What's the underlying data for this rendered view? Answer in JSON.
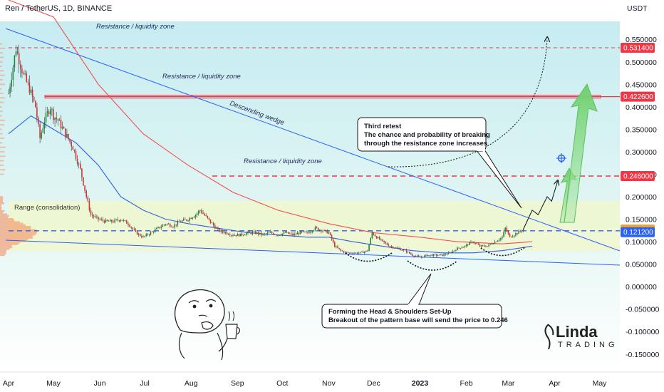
{
  "header": {
    "symbol_title": "Ren / TetherUS, 1D, BINANCE",
    "currency": "USDT"
  },
  "chart_data": {
    "type": "candlestick",
    "y_axis": {
      "ylim": [
        -0.19,
        0.59
      ],
      "ticks": [
        "0.550000",
        "0.500000",
        "0.450000",
        "0.400000",
        "0.350000",
        "0.300000",
        "0.250000",
        "0.200000",
        "0.150000",
        "0.100000",
        "0.050000",
        "0.000000",
        "-0.050000",
        "-0.100000",
        "-0.150000"
      ],
      "tick_values": [
        0.55,
        0.5,
        0.45,
        0.4,
        0.35,
        0.3,
        0.25,
        0.2,
        0.15,
        0.1,
        0.05,
        0,
        -0.05,
        -0.1,
        -0.15
      ]
    },
    "x_axis": {
      "labels": [
        "Apr",
        "May",
        "Jun",
        "Jul",
        "Aug",
        "Sep",
        "Oct",
        "Nov",
        "Dec",
        "2023",
        "Feb",
        "Mar",
        "Apr",
        "May"
      ],
      "label_days": [
        0,
        30,
        61,
        91,
        122,
        153,
        183,
        214,
        244,
        275,
        306,
        334,
        365,
        395
      ],
      "bold_label": "2023"
    },
    "price_badges": [
      {
        "label": "0.531400",
        "value": 0.5314,
        "color": "#f23645"
      },
      {
        "label": "0.422600",
        "value": 0.4226,
        "color": "#f23645"
      },
      {
        "label": "0.246000",
        "value": 0.246,
        "color": "#f23645"
      },
      {
        "label": "0.126780",
        "value": 0.12678,
        "color": "#f7a21b"
      },
      {
        "label": "0.121200",
        "value": 0.1212,
        "color": "#2962ff"
      }
    ],
    "resistance_levels": [
      {
        "label": "Resistance / liquidity zone",
        "value": 0.5314
      },
      {
        "label": "Resistance / liquidity zone",
        "value": 0.4226
      },
      {
        "label": "Resistance / liquidity zone",
        "value": 0.246
      }
    ],
    "range_label": "Range (consolidation)",
    "wedge_label": "Descending wedge",
    "annotations": [
      {
        "id": "third-retest",
        "lines": [
          "Third retest",
          "The chance and probability of breaking",
          "through the resistance zone increases"
        ]
      },
      {
        "id": "head-shoulders",
        "lines": [
          "Forming the Head & Shoulders Set-Up",
          "Breakout of the pattern base will send the price to 0.246"
        ]
      }
    ],
    "price_series": [
      [
        0,
        0.43
      ],
      [
        5,
        0.53
      ],
      [
        10,
        0.47
      ],
      [
        14,
        0.44
      ],
      [
        18,
        0.4
      ],
      [
        21,
        0.33
      ],
      [
        24,
        0.37
      ],
      [
        28,
        0.4
      ],
      [
        30,
        0.38
      ],
      [
        33,
        0.37
      ],
      [
        38,
        0.34
      ],
      [
        43,
        0.31
      ],
      [
        48,
        0.26
      ],
      [
        52,
        0.2
      ],
      [
        55,
        0.16
      ],
      [
        60,
        0.15
      ],
      [
        65,
        0.145
      ],
      [
        70,
        0.145
      ],
      [
        75,
        0.15
      ],
      [
        80,
        0.14
      ],
      [
        85,
        0.12
      ],
      [
        90,
        0.11
      ],
      [
        95,
        0.12
      ],
      [
        100,
        0.13
      ],
      [
        105,
        0.14
      ],
      [
        110,
        0.135
      ],
      [
        115,
        0.145
      ],
      [
        120,
        0.15
      ],
      [
        125,
        0.16
      ],
      [
        128,
        0.17
      ],
      [
        132,
        0.155
      ],
      [
        136,
        0.14
      ],
      [
        140,
        0.125
      ],
      [
        145,
        0.12
      ],
      [
        150,
        0.115
      ],
      [
        155,
        0.115
      ],
      [
        160,
        0.12
      ],
      [
        165,
        0.12
      ],
      [
        170,
        0.115
      ],
      [
        175,
        0.12
      ],
      [
        180,
        0.115
      ],
      [
        185,
        0.12
      ],
      [
        190,
        0.115
      ],
      [
        195,
        0.12
      ],
      [
        200,
        0.12
      ],
      [
        205,
        0.13
      ],
      [
        210,
        0.125
      ],
      [
        214,
        0.12
      ],
      [
        218,
        0.09
      ],
      [
        222,
        0.08
      ],
      [
        226,
        0.075
      ],
      [
        230,
        0.075
      ],
      [
        235,
        0.075
      ],
      [
        240,
        0.08
      ],
      [
        243,
        0.12
      ],
      [
        246,
        0.11
      ],
      [
        250,
        0.1
      ],
      [
        255,
        0.09
      ],
      [
        260,
        0.085
      ],
      [
        265,
        0.08
      ],
      [
        270,
        0.07
      ],
      [
        275,
        0.065
      ],
      [
        280,
        0.07
      ],
      [
        285,
        0.07
      ],
      [
        290,
        0.07
      ],
      [
        295,
        0.075
      ],
      [
        300,
        0.085
      ],
      [
        305,
        0.09
      ],
      [
        310,
        0.1
      ],
      [
        315,
        0.09
      ],
      [
        320,
        0.09
      ],
      [
        325,
        0.1
      ],
      [
        330,
        0.11
      ],
      [
        332,
        0.13
      ],
      [
        335,
        0.11
      ],
      [
        340,
        0.12
      ],
      [
        344,
        0.127
      ]
    ],
    "projection_path": [
      [
        344,
        0.127
      ],
      [
        350,
        0.17
      ],
      [
        354,
        0.16
      ],
      [
        360,
        0.2
      ],
      [
        363,
        0.19
      ],
      [
        367,
        0.235
      ]
    ],
    "ma_red": [
      [
        0,
        0.85
      ],
      [
        30,
        0.6
      ],
      [
        60,
        0.45
      ],
      [
        90,
        0.34
      ],
      [
        120,
        0.27
      ],
      [
        150,
        0.21
      ],
      [
        180,
        0.17
      ],
      [
        214,
        0.14
      ],
      [
        244,
        0.12
      ],
      [
        275,
        0.11
      ],
      [
        300,
        0.1
      ],
      [
        330,
        0.095
      ],
      [
        350,
        0.1
      ]
    ],
    "ma_blue": [
      [
        0,
        0.34
      ],
      [
        15,
        0.38
      ],
      [
        25,
        0.36
      ],
      [
        45,
        0.32
      ],
      [
        60,
        0.27
      ],
      [
        75,
        0.2
      ],
      [
        90,
        0.17
      ],
      [
        105,
        0.15
      ],
      [
        120,
        0.14
      ],
      [
        140,
        0.13
      ],
      [
        160,
        0.12
      ],
      [
        180,
        0.115
      ],
      [
        200,
        0.11
      ],
      [
        214,
        0.11
      ],
      [
        230,
        0.1
      ],
      [
        250,
        0.09
      ],
      [
        270,
        0.08
      ],
      [
        290,
        0.075
      ],
      [
        310,
        0.075
      ],
      [
        330,
        0.08
      ],
      [
        350,
        0.09
      ]
    ]
  }
}
